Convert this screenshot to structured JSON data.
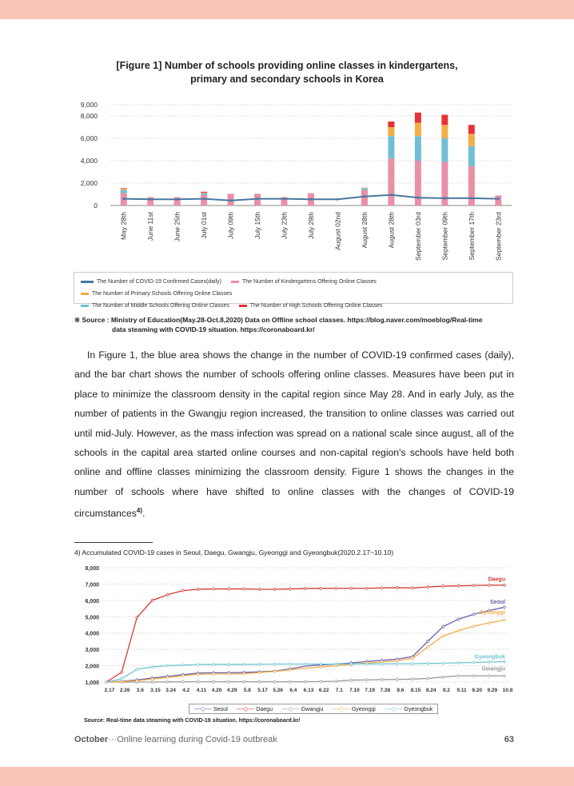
{
  "figure1": {
    "label": "[Figure 1]",
    "title_line1": " Number of schools providing online classes in kindergartens,",
    "title_line2": "primary and secondary schools in Korea"
  },
  "colors": {
    "cases": "#4a78a0",
    "kindergarten": "#e98fa6",
    "primary": "#f5ad48",
    "middle": "#71bfd4",
    "high": "#e53238",
    "band": "#f8c4b7"
  },
  "chart_data": [
    {
      "type": "bar",
      "stacked": true,
      "title": "Number of schools providing online classes in kindergartens, primary and secondary schools in Korea",
      "categories": [
        "May 28th",
        "June 11st",
        "June 25th",
        "July 01st",
        "July 09th",
        "July 15th",
        "July 23th",
        "July 29th",
        "August 02nd",
        "August 28th",
        "August 28th",
        "September 03rd",
        "September 09th",
        "September 17th",
        "September 23rd"
      ],
      "yticks": [
        "0",
        "2,000",
        "4,000",
        "6,000",
        "8,000",
        "9,000"
      ],
      "ylim": [
        0,
        9000
      ],
      "series": [
        {
          "name": "The Number of COVID-19 Confirmed Cases(daily)",
          "kind": "line",
          "values": [
            600,
            550,
            550,
            600,
            450,
            600,
            600,
            550,
            550,
            800,
            950,
            700,
            650,
            650,
            600
          ]
        },
        {
          "name": "The Number of Kindergartens Offering Online Classes",
          "values": [
            1100,
            750,
            750,
            950,
            1050,
            1050,
            750,
            1100,
            0,
            1400,
            4200,
            4000,
            3900,
            3500,
            900
          ]
        },
        {
          "name": "The Number of Middle Schools Offering Online Classes",
          "values": [
            300,
            0,
            0,
            150,
            0,
            0,
            0,
            0,
            0,
            150,
            2000,
            2200,
            2100,
            1800,
            0
          ]
        },
        {
          "name": "The Number of Primary Schools Offering Online Classes",
          "values": [
            100,
            0,
            0,
            50,
            0,
            0,
            0,
            0,
            0,
            50,
            800,
            1200,
            1200,
            1100,
            0
          ]
        },
        {
          "name": "The Number of High Schools Offering Online Classes",
          "values": [
            50,
            0,
            0,
            80,
            0,
            0,
            0,
            0,
            0,
            0,
            500,
            900,
            900,
            800,
            0
          ]
        }
      ],
      "legend": [
        "The Number of COVID-19 Confirmed Cases(daily)",
        "The Number of Kindergartens Offering Online Classes",
        "The Number of Primary Schools Offering Online Classes",
        "The Number of Middle Schools Offering Online Classes",
        "The Number of High Schools Offering Online Classes"
      ]
    },
    {
      "type": "line",
      "title": "Accumulated COVID-19 cases in Seoul, Daegu, Gwangju, Gyeonggi and Gyeongbuk(2020.2.17~10.10)",
      "x": [
        "2.17",
        "2.26",
        "3.6",
        "3.15",
        "3.24",
        "4.2",
        "4.11",
        "4.20",
        "4.29",
        "5.8",
        "5.17",
        "5.26",
        "6.4",
        "6.13",
        "6.22",
        "7.1",
        "7.10",
        "7.19",
        "7.28",
        "8.6",
        "8.15",
        "8.24",
        "9.2",
        "9.11",
        "9.20",
        "9.29",
        "10.8"
      ],
      "yticks": [
        "1,000",
        "2,000",
        "3,000",
        "4,000",
        "5,000",
        "6,000",
        "7,000",
        "8,000"
      ],
      "ylim": [
        1000,
        8000
      ],
      "series": [
        {
          "name": "Seoul",
          "color": "#6a5fa8",
          "values": [
            1000,
            1050,
            1130,
            1250,
            1350,
            1450,
            1550,
            1570,
            1570,
            1590,
            1620,
            1670,
            1800,
            1980,
            2050,
            2100,
            2170,
            2260,
            2330,
            2400,
            2560,
            3500,
            4400,
            4850,
            5150,
            5380,
            5580
          ]
        },
        {
          "name": "Daegu",
          "color": "#d33a3a",
          "values": [
            1000,
            1600,
            4950,
            6000,
            6350,
            6600,
            6680,
            6700,
            6700,
            6700,
            6680,
            6680,
            6700,
            6730,
            6730,
            6740,
            6740,
            6740,
            6760,
            6780,
            6760,
            6820,
            6870,
            6890,
            6910,
            6930,
            6930
          ]
        },
        {
          "name": "Gwangju",
          "color": "#999999",
          "values": [
            1000,
            1000,
            1000,
            1000,
            1010,
            1020,
            1020,
            1020,
            1020,
            1020,
            1020,
            1020,
            1020,
            1020,
            1030,
            1050,
            1120,
            1130,
            1150,
            1160,
            1180,
            1220,
            1310,
            1380,
            1380,
            1380,
            1380
          ]
        },
        {
          "name": "Gyeonggi",
          "color": "#f0ad4e",
          "values": [
            1000,
            1030,
            1080,
            1180,
            1280,
            1380,
            1480,
            1490,
            1490,
            1510,
            1580,
            1650,
            1750,
            1850,
            1920,
            2000,
            2080,
            2170,
            2230,
            2300,
            2450,
            3150,
            3820,
            4150,
            4420,
            4620,
            4800
          ]
        },
        {
          "name": "Gyeongbuk",
          "color": "#6fc3d0",
          "values": [
            1000,
            1200,
            1780,
            1920,
            2010,
            2040,
            2070,
            2080,
            2080,
            2080,
            2090,
            2100,
            2100,
            2100,
            2100,
            2100,
            2110,
            2110,
            2110,
            2120,
            2120,
            2140,
            2150,
            2180,
            2200,
            2230,
            2250
          ]
        }
      ]
    }
  ],
  "source1": {
    "line1": "※ Source : Ministry of Education(May.28-Oct.8,2020) Data on Offline school classes. https://blog.naver.com/moeblog/Real-time",
    "line2": "data steaming with COVID-19 situation. https://coronaboard.kr/"
  },
  "paragraph": "In Figure 1, the blue area shows the change in the number of COVID-19 confirmed cases (daily), and the bar chart shows the number of schools offering online classes. Measures have been put in place to minimize the classroom density in the capital region since May 28. And in early July, as the number of patients in the Gwangju region increased, the transition to online classes was carried out until mid-July. However, as the mass infection was spread on a national scale since august, all of the schools in the capital area started online courses and non-capital region's schools have held both online and offline classes minimizing the classroom density. Figure 1 shows the changes in the number of schools where have shifted to online classes with the changes of COVID-19 circumstances",
  "paragraph_ref": "4)",
  "footnote": "4) Accumulated COVID-19 cases in Seoul, Daegu, Gwangju, Gyeonggi and Gyeongbuk(2020.2.17~10.10)",
  "source2": "Source: Real-time data steaming with COVID-19 situation. https://coronaboard.kr/",
  "footer": {
    "month": "October",
    "sep": "···",
    "title": "Online learning during Covid-19 outbreak",
    "page": "63"
  }
}
